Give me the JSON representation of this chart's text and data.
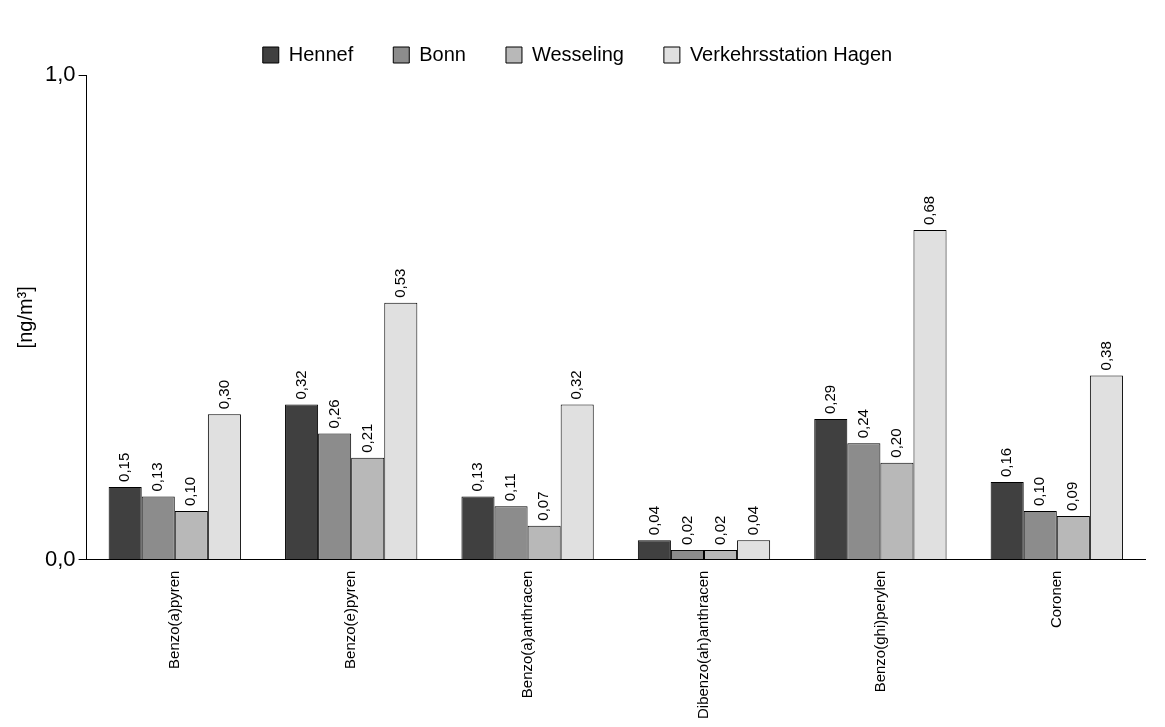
{
  "chart_data": {
    "type": "bar",
    "ylabel": "[ng/m³]",
    "categories": [
      "Benzo(a)pyren",
      "Benzo(e)pyren",
      "Benzo(a)anthracen",
      "Dibenzo(ah)anthracen",
      "Benzo(ghi)perylen",
      "Coronen"
    ],
    "series": [
      {
        "name": "Hennef",
        "color": "#404040",
        "values": [
          0.15,
          0.32,
          0.13,
          0.04,
          0.29,
          0.16
        ],
        "value_labels": [
          "0,15",
          "0,32",
          "0,13",
          "0,04",
          "0,29",
          "0,16"
        ]
      },
      {
        "name": "Bonn",
        "color": "#8c8c8c",
        "values": [
          0.13,
          0.26,
          0.11,
          0.02,
          0.24,
          0.1
        ],
        "value_labels": [
          "0,13",
          "0,26",
          "0,11",
          "0,02",
          "0,24",
          "0,10"
        ]
      },
      {
        "name": "Wesseling",
        "color": "#b8b8b8",
        "values": [
          0.1,
          0.21,
          0.07,
          0.02,
          0.2,
          0.09
        ],
        "value_labels": [
          "0,10",
          "0,21",
          "0,07",
          "0,02",
          "0,20",
          "0,09"
        ]
      },
      {
        "name": "Verkehrsstation Hagen",
        "color": "#e0e0e0",
        "values": [
          0.3,
          0.53,
          0.32,
          0.04,
          0.68,
          0.38
        ],
        "value_labels": [
          "0,30",
          "0,53",
          "0,32",
          "0,04",
          "0,68",
          "0,38"
        ]
      }
    ],
    "ylim": [
      0,
      1
    ],
    "yticks": [
      {
        "value": 0,
        "label": "0,0"
      },
      {
        "value": 1,
        "label": "1,0"
      }
    ],
    "grid": false,
    "legend": "top"
  }
}
